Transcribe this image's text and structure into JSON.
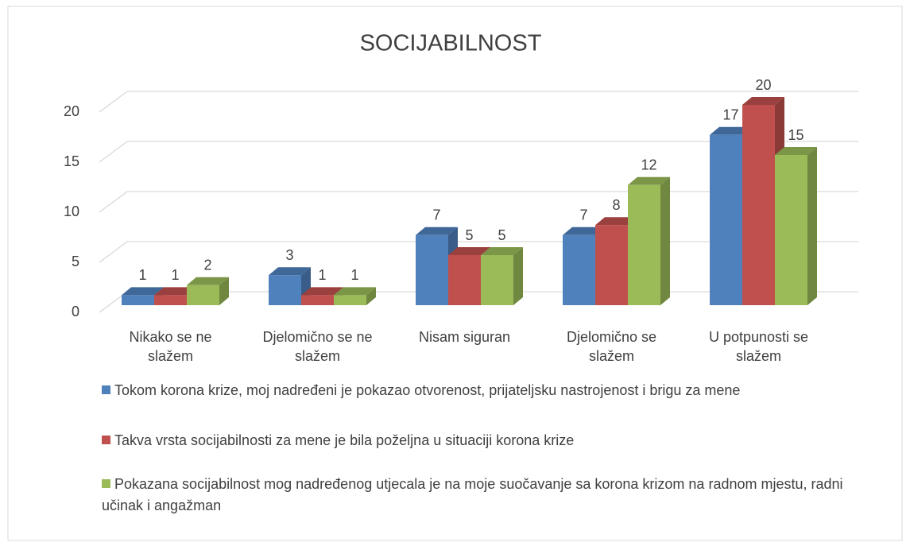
{
  "chart_data": {
    "type": "bar3d",
    "title": "SOCIJABILNOST",
    "categories": [
      "Nikako se ne slažem",
      "Djelomično se ne slažem",
      "Nisam siguran",
      "Djelomično se slažem",
      "U potpunosti se slažem"
    ],
    "series": [
      {
        "name": "Tokom korona krize, moj nadređeni je pokazao otvorenost, prijateljsku nastrojenost i brigu za mene",
        "color": "#4f81bd",
        "values": [
          1,
          3,
          7,
          7,
          17
        ]
      },
      {
        "name": "Takva vrsta socijabilnosti za mene je bila poželjna u situaciji korona krize",
        "color": "#c0504d",
        "values": [
          1,
          1,
          5,
          8,
          20
        ]
      },
      {
        "name": "Pokazana socijabilnost mog nadređenog utjecala je na moje suočavanje sa korona krizom na radnom mjestu, radni učinak i angažman",
        "color": "#9bbb59",
        "values": [
          2,
          1,
          5,
          12,
          15
        ]
      }
    ],
    "ylim": [
      0,
      20
    ],
    "yticks": [
      0,
      5,
      10,
      15,
      20
    ],
    "grid": true,
    "legend": "bottom"
  }
}
